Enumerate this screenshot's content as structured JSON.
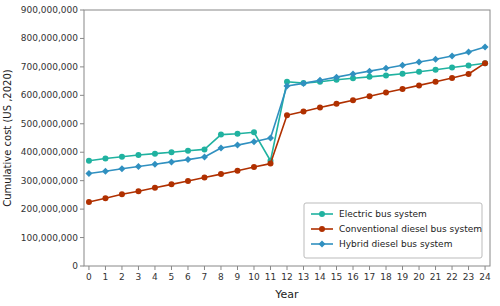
{
  "chart_data": {
    "type": "line",
    "x": [
      0,
      1,
      2,
      3,
      4,
      5,
      6,
      7,
      8,
      9,
      10,
      11,
      12,
      13,
      14,
      15,
      16,
      17,
      18,
      19,
      20,
      21,
      22,
      23,
      24
    ],
    "series": [
      {
        "name": "Electric bus system",
        "color": "#20b2a0",
        "marker": "circle",
        "values": [
          370000000,
          378000000,
          384000000,
          390000000,
          395000000,
          400000000,
          405000000,
          410000000,
          462000000,
          465000000,
          470000000,
          370000000,
          648000000,
          643000000,
          648000000,
          655000000,
          660000000,
          665000000,
          670000000,
          676000000,
          683000000,
          690000000,
          698000000,
          705000000,
          713000000
        ]
      },
      {
        "name": "Conventional diesel bus system",
        "color": "#b03000",
        "marker": "circle",
        "values": [
          225000000,
          238000000,
          252000000,
          263000000,
          275000000,
          287000000,
          299000000,
          311000000,
          323000000,
          335000000,
          348000000,
          360000000,
          530000000,
          543000000,
          557000000,
          570000000,
          583000000,
          597000000,
          610000000,
          622000000,
          635000000,
          648000000,
          661000000,
          675000000,
          713000000
        ]
      },
      {
        "name": "Hybrid diesel bus system",
        "color": "#3090c0",
        "marker": "diamond",
        "values": [
          325000000,
          333000000,
          342000000,
          350000000,
          358000000,
          366000000,
          374000000,
          383000000,
          415000000,
          425000000,
          437000000,
          450000000,
          633000000,
          642000000,
          653000000,
          664000000,
          675000000,
          685000000,
          695000000,
          706000000,
          717000000,
          727000000,
          738000000,
          752000000,
          770000000
        ]
      }
    ],
    "xlabel": "Year",
    "ylabel": "Cumulative cost (US ,2020)",
    "xlim": [
      -0.3,
      24.3
    ],
    "xticks": [
      0,
      1,
      2,
      3,
      4,
      5,
      6,
      7,
      8,
      9,
      10,
      11,
      12,
      13,
      14,
      15,
      16,
      17,
      18,
      19,
      20,
      21,
      22,
      23,
      24
    ],
    "ylim": [
      0,
      900000000
    ],
    "yticks": [
      0,
      {
        "value": 100000000,
        "label": "100,000,000"
      },
      {
        "value": 200000000,
        "label": "200,000,000"
      },
      {
        "value": 300000000,
        "label": "300,000,000"
      },
      {
        "value": 400000000,
        "label": "400,000,000"
      },
      {
        "value": 500000000,
        "label": "500,000,000"
      },
      {
        "value": 600000000,
        "label": "600,000,000"
      },
      {
        "value": 700000000,
        "label": "700,000,000"
      },
      {
        "value": 800000000,
        "label": "800,000,000"
      },
      {
        "value": 900000000,
        "label": "900,000,000"
      }
    ],
    "grid": false,
    "legend": "lower right"
  }
}
